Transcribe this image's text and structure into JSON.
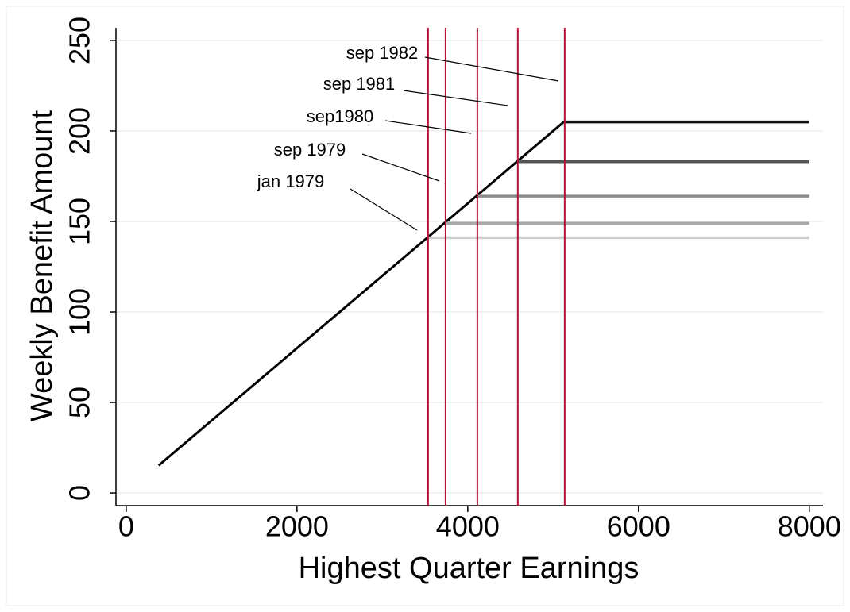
{
  "chart_data": {
    "type": "line",
    "xlabel": "Highest Quarter Earnings",
    "ylabel": "Weekly Benefit Amount",
    "xlim": [
      -120,
      8160
    ],
    "ylim": [
      -7,
      257
    ],
    "xticks": [
      0,
      2000,
      4000,
      6000,
      8000
    ],
    "yticks": [
      0,
      50,
      100,
      150,
      200,
      250
    ],
    "grid": true,
    "series": [
      {
        "color": "#000000",
        "x": [
          380,
          5135
        ],
        "values": [
          15.2,
          205.4
        ]
      },
      {
        "color": "#cfcfcf",
        "x": [
          3535,
          8000
        ],
        "values": [
          141,
          141
        ]
      },
      {
        "color": "#a8a8a8",
        "x": [
          3740,
          8000
        ],
        "values": [
          149,
          149
        ]
      },
      {
        "color": "#8a8a8a",
        "x": [
          4112,
          8000
        ],
        "values": [
          164,
          164
        ]
      },
      {
        "color": "#555555",
        "x": [
          4586,
          8000
        ],
        "values": [
          183,
          183
        ]
      },
      {
        "color": "#111111",
        "x": [
          5135,
          8000
        ],
        "values": [
          205,
          205
        ]
      }
    ],
    "reference_lines": {
      "color": "#b5123a",
      "x": [
        3535,
        3740,
        4112,
        4586,
        5135
      ]
    },
    "annotations": [
      "sep 1982",
      "sep 1981",
      "sep1980",
      "sep 1979",
      "jan 1979"
    ]
  }
}
